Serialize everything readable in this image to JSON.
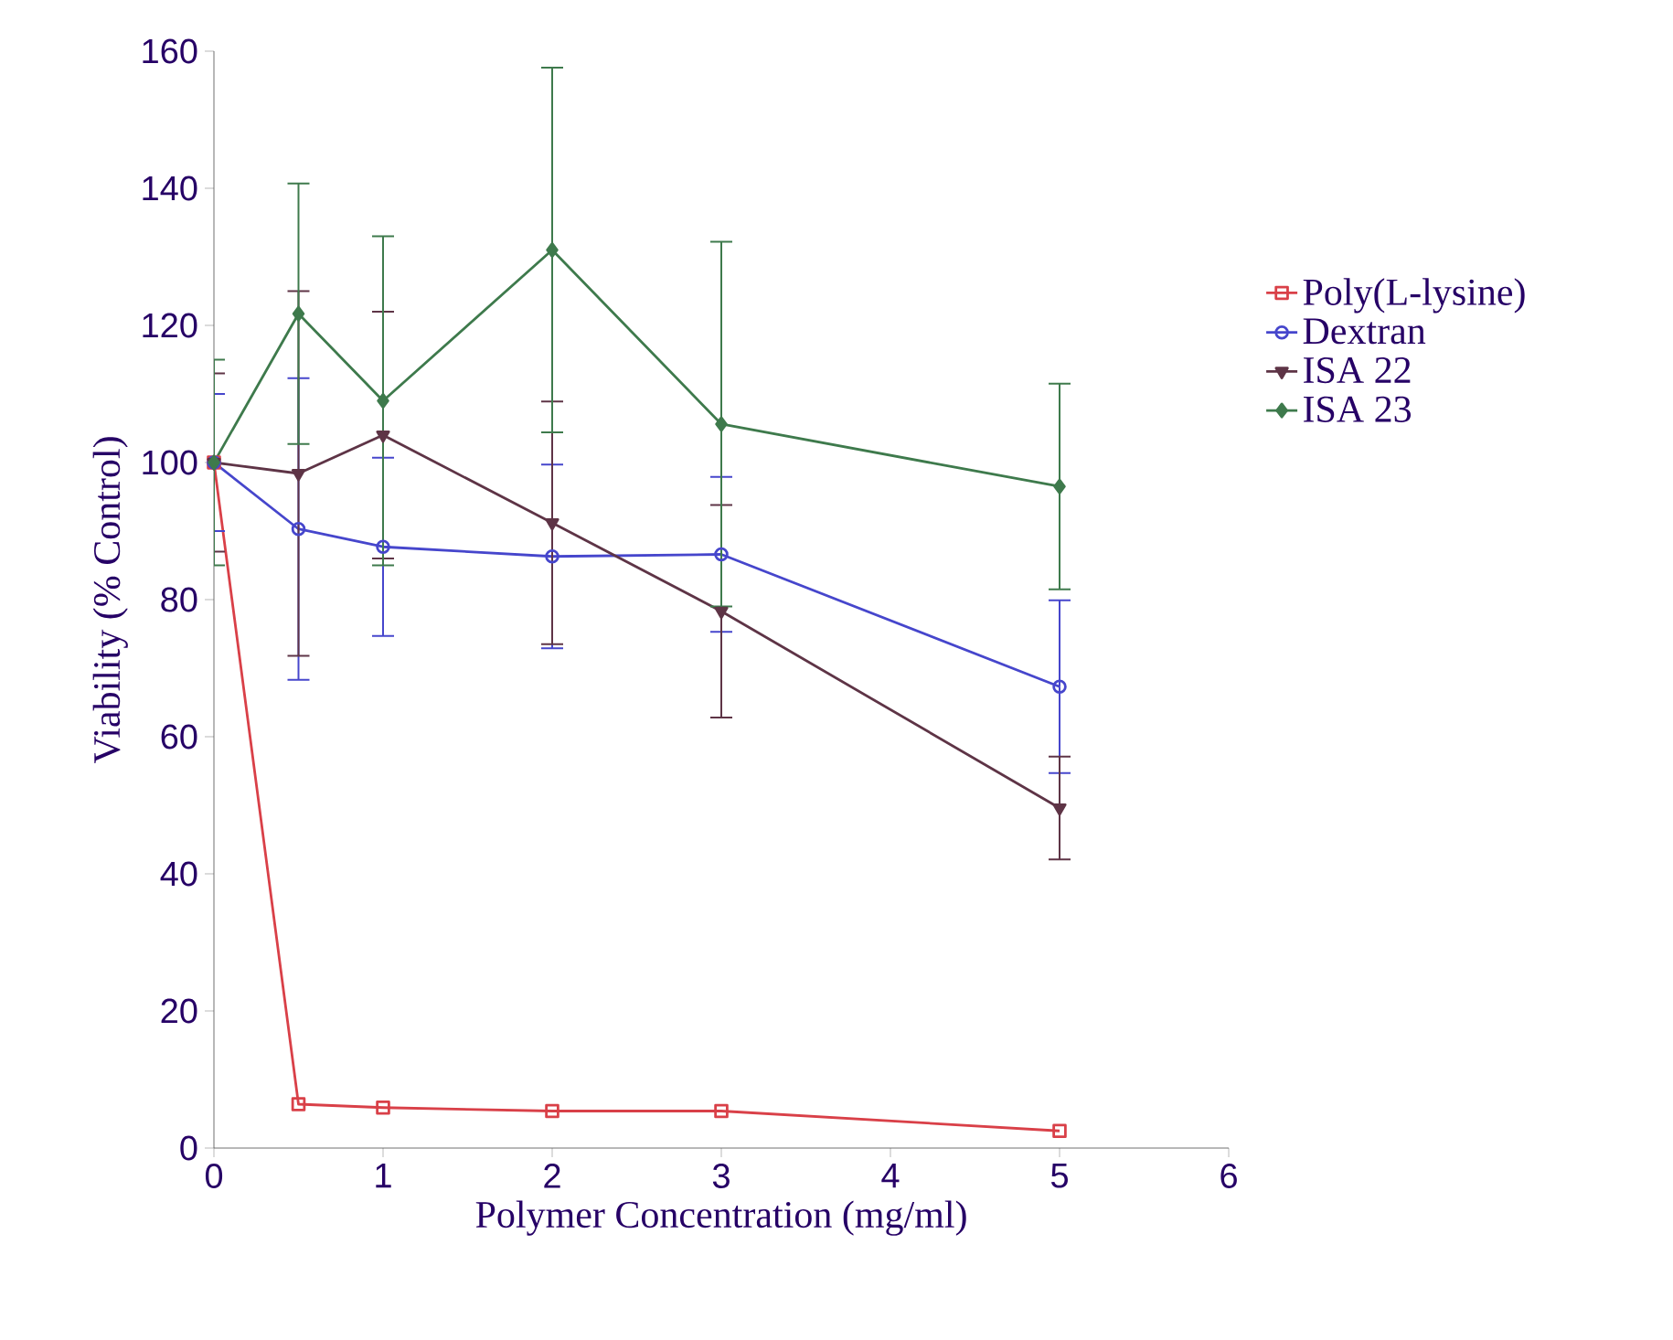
{
  "chart_data": {
    "type": "line",
    "xlabel": "Polymer Concentration (mg/ml)",
    "ylabel": "Viability (% Control)",
    "x": [
      0,
      0.5,
      1,
      2,
      3,
      5
    ],
    "xlim": [
      0,
      6
    ],
    "ylim": [
      0,
      160
    ],
    "xticks": [
      0,
      1,
      2,
      3,
      4,
      5,
      6
    ],
    "yticks": [
      0,
      20,
      40,
      60,
      80,
      100,
      120,
      140,
      160
    ],
    "grid": false,
    "legend": "right",
    "series": [
      {
        "name": "Poly(L-lysine)",
        "color": "#d94048",
        "marker": "square",
        "values": [
          100,
          6.4,
          5.9,
          5.4,
          5.4,
          2.5
        ]
      },
      {
        "name": "Dextran",
        "color": "#4646cc",
        "marker": "circle",
        "values": [
          100,
          90.3,
          87.7,
          86.3,
          86.6,
          67.3
        ],
        "errors": [
          10,
          22,
          13,
          13.4,
          11.3,
          12.6
        ]
      },
      {
        "name": "ISA 22",
        "color": "#5e3446",
        "marker": "triangle",
        "values": [
          100,
          98.4,
          104,
          91.2,
          78.3,
          49.6
        ],
        "errors": [
          13,
          26.6,
          18,
          17.7,
          15.5,
          7.5
        ]
      },
      {
        "name": "ISA 23",
        "color": "#3e7a4c",
        "marker": "diamond",
        "values": [
          100,
          121.7,
          109,
          131,
          105.6,
          96.5
        ],
        "errors": [
          15,
          19,
          24,
          26.6,
          26.6,
          15
        ]
      }
    ]
  }
}
